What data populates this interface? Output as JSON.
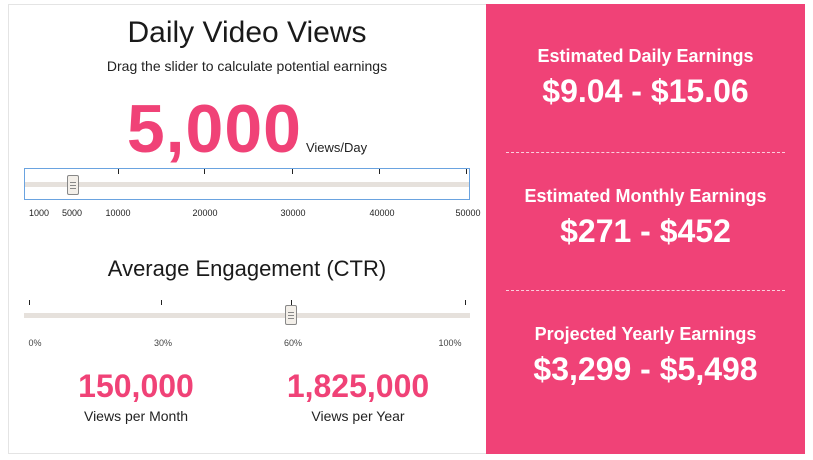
{
  "views_calculator": {
    "title": "Daily Video Views",
    "subtitle": "Drag the slider to calculate potential earnings",
    "views_value": "5,000",
    "views_unit": "Views/Day",
    "views_slider": {
      "min": 1000,
      "max": 50000,
      "value": 5000,
      "tick_labels": [
        "1000",
        "5000",
        "10000",
        "20000",
        "30000",
        "40000",
        "50000"
      ]
    }
  },
  "engagement": {
    "title": "Average Engagement (CTR)",
    "slider": {
      "min": 0,
      "max": 100,
      "value": 60,
      "tick_labels": [
        "0%",
        "30%",
        "60%",
        "100%"
      ]
    }
  },
  "stats": {
    "monthly": {
      "value": "150,000",
      "label": "Views per Month"
    },
    "yearly": {
      "value": "1,825,000",
      "label": "Views per Year"
    }
  },
  "earnings": {
    "daily": {
      "title": "Estimated Daily Earnings",
      "value": "$9.04 - $15.06"
    },
    "monthly": {
      "title": "Estimated Monthly Earnings",
      "value": "$271 - $452"
    },
    "yearly": {
      "title": "Projected Yearly Earnings",
      "value": "$3,299 - $5,498"
    }
  },
  "colors": {
    "accent": "#f04277",
    "track": "#e6e1dc",
    "focus_border": "#6aa3e0"
  }
}
